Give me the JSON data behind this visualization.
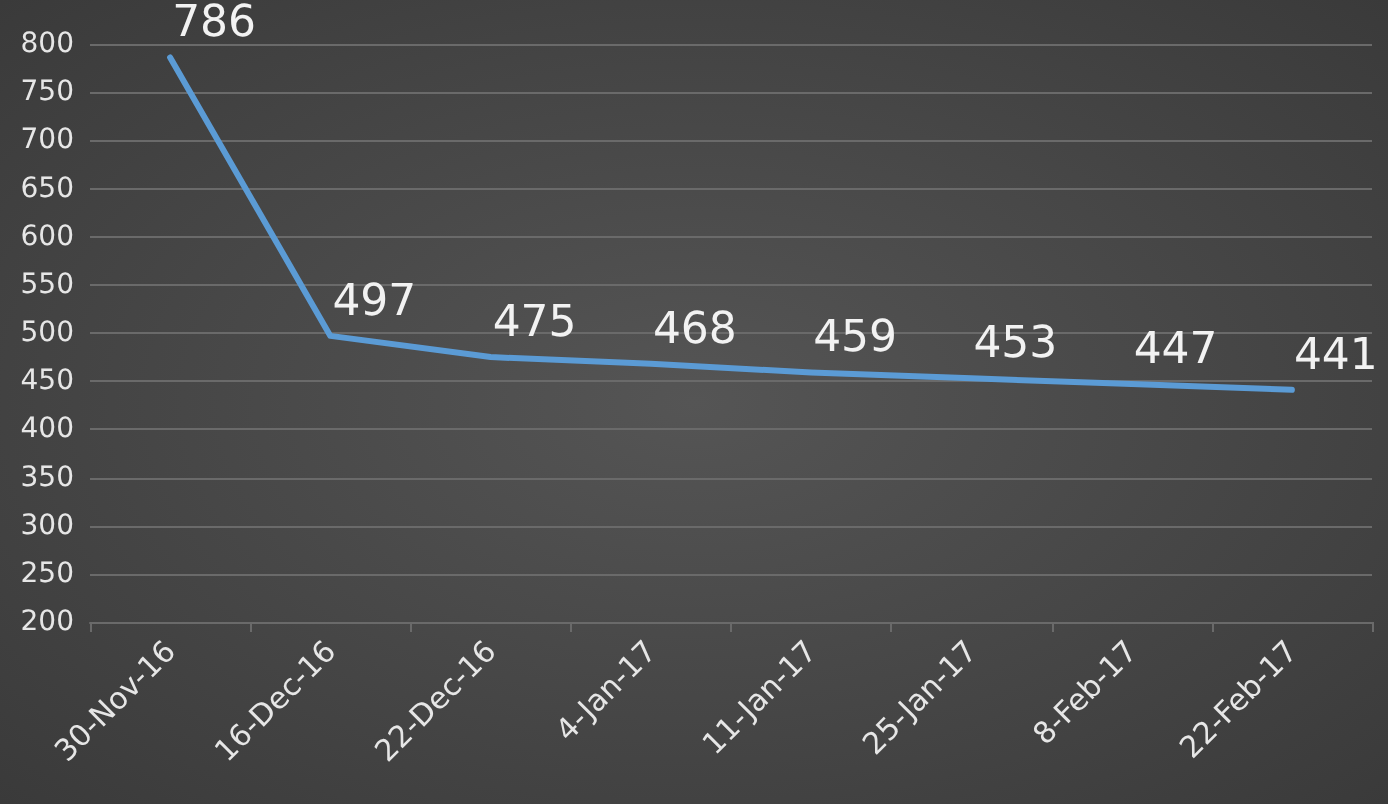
{
  "chart_data": {
    "type": "line",
    "categories": [
      "30-Nov-16",
      "16-Dec-16",
      "22-Dec-16",
      "4-Jan-17",
      "11-Jan-17",
      "25-Jan-17",
      "8-Feb-17",
      "22-Feb-17"
    ],
    "series": [
      {
        "color": "#5b9bd5",
        "values": [
          786,
          497,
          475,
          468,
          459,
          453,
          447,
          441
        ]
      }
    ],
    "ylim": [
      200,
      800
    ],
    "yticks": [
      200,
      250,
      300,
      350,
      400,
      450,
      500,
      550,
      600,
      650,
      700,
      750,
      800
    ],
    "grid": "y",
    "data_labels": true,
    "marker": "none",
    "line_style": "solid"
  }
}
